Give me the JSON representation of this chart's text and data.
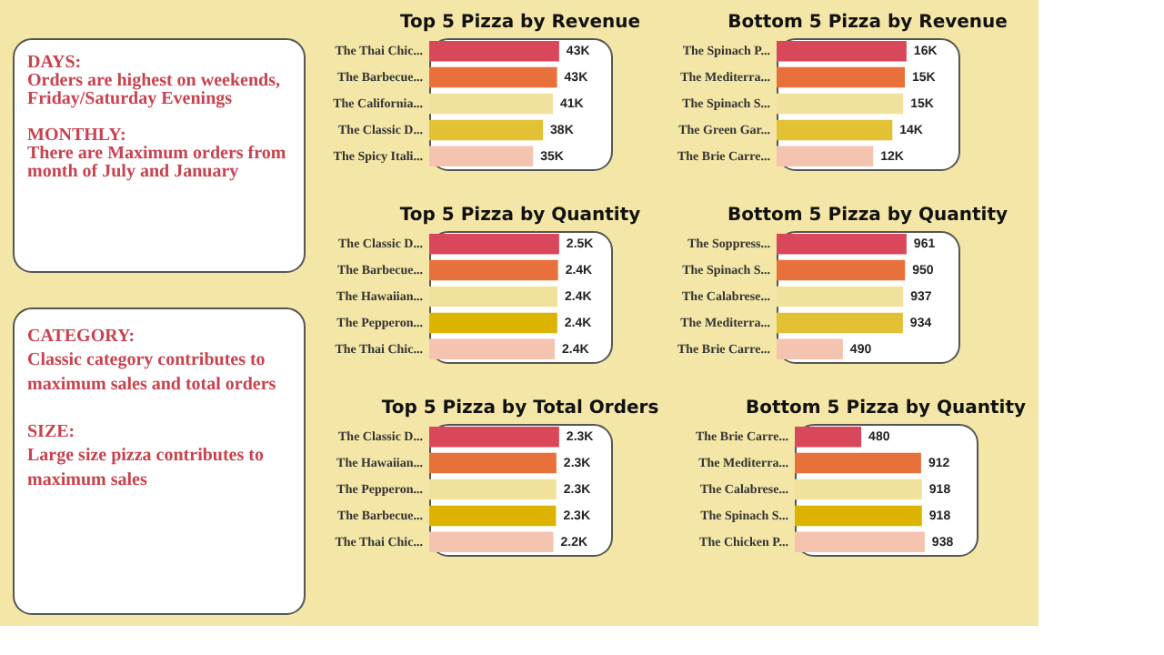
{
  "chart_data": [
    {
      "type": "other",
      "annotations": [
        "DAYS:",
        "Orders are highest on weekends, Friday/Saturday Evenings",
        "MONTHLY:",
        "There are Maximum orders from month of July and January"
      ]
    },
    {
      "type": "other",
      "annotations": [
        "CATEGORY:",
        "Classic category contributes to maximum sales and total orders",
        "SIZE:",
        "Large size pizza contributes to maximum sales"
      ]
    },
    {
      "type": "bar",
      "orientation": "horizontal",
      "title": "Top 5 Pizza by Revenue",
      "categories": [
        "The Thai Chic...",
        "The Barbecue...",
        "The California...",
        "The Classic D...",
        "The Spicy Itali..."
      ],
      "values": [
        43400,
        42700,
        41300,
        38000,
        34700
      ],
      "value_labels": [
        "43K",
        "43K",
        "41K",
        "38K",
        "35K"
      ],
      "colors": [
        "#d9475a",
        "#e8703a",
        "#f0e29c",
        "#e2c234",
        "#f5c4b0"
      ]
    },
    {
      "type": "bar",
      "orientation": "horizontal",
      "title": "Bottom 5 Pizza by Revenue",
      "categories": [
        "The Spinach P...",
        "The Mediterra...",
        "The Spinach S...",
        "The Green Gar...",
        "The Brie Carre..."
      ],
      "values": [
        15600,
        15400,
        15200,
        13900,
        11600
      ],
      "value_labels": [
        "16K",
        "15K",
        "15K",
        "14K",
        "12K"
      ],
      "colors": [
        "#d9475a",
        "#e8703a",
        "#f0e29c",
        "#e2c234",
        "#f5c4b0"
      ]
    },
    {
      "type": "bar",
      "orientation": "horizontal",
      "title": "Top 5 Pizza by Quantity",
      "categories": [
        "The Classic D...",
        "The Barbecue...",
        "The Hawaiian...",
        "The Pepperon...",
        "The Thai Chic..."
      ],
      "values": [
        2453,
        2432,
        2422,
        2418,
        2371
      ],
      "value_labels": [
        "2.5K",
        "2.4K",
        "2.4K",
        "2.4K",
        "2.4K"
      ],
      "colors": [
        "#d9475a",
        "#e8703a",
        "#f0e29c",
        "#dcb400",
        "#f5c4b0"
      ]
    },
    {
      "type": "bar",
      "orientation": "horizontal",
      "title": "Bottom 5 Pizza by Quantity",
      "categories": [
        "The Soppress...",
        "The Spinach S...",
        "The Calabrese...",
        "The Mediterra...",
        "The Brie Carre..."
      ],
      "values": [
        961,
        950,
        937,
        934,
        490
      ],
      "data_labels": true,
      "colors": [
        "#d9475a",
        "#e8703a",
        "#f0e29c",
        "#e2c234",
        "#f5c4b0"
      ]
    },
    {
      "type": "bar",
      "orientation": "horizontal",
      "title": "Top 5 Pizza by Total Orders",
      "categories": [
        "The Classic D...",
        "The Hawaiian...",
        "The Pepperon...",
        "The Barbecue...",
        "The Thai Chic..."
      ],
      "values": [
        2329,
        2280,
        2278,
        2273,
        2225
      ],
      "value_labels": [
        "2.3K",
        "2.3K",
        "2.3K",
        "2.3K",
        "2.2K"
      ],
      "colors": [
        "#d9475a",
        "#e8703a",
        "#f0e29c",
        "#dcb400",
        "#f5c4b0"
      ]
    },
    {
      "type": "bar",
      "orientation": "horizontal",
      "title": "Bottom 5 Pizza by Quantity",
      "categories": [
        "The Brie Carre...",
        "The Mediterra...",
        "The Calabrese...",
        "The Spinach S...",
        "The Chicken P..."
      ],
      "values": [
        480,
        912,
        918,
        918,
        938
      ],
      "data_labels": true,
      "colors": [
        "#d9475a",
        "#e8703a",
        "#f0e29c",
        "#dcb400",
        "#f5c4b0"
      ]
    }
  ]
}
